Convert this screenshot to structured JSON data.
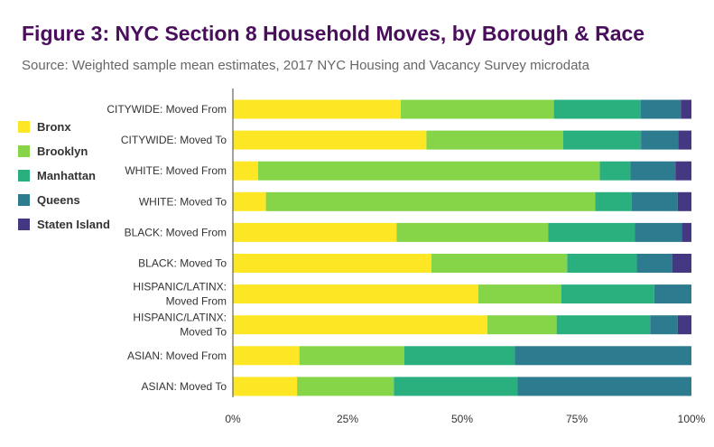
{
  "title": "Figure 3: NYC Section 8 Household Moves, by Borough & Race",
  "subtitle": "Source: Weighted sample mean estimates, 2017 NYC Housing and Vacancy Survey microdata",
  "legend": [
    {
      "label": "Bronx",
      "color": "#fde725"
    },
    {
      "label": "Brooklyn",
      "color": "#86d549"
    },
    {
      "label": "Manhattan",
      "color": "#2ab07f"
    },
    {
      "label": "Queens",
      "color": "#2c7b8e"
    },
    {
      "label": "Staten Island",
      "color": "#453882"
    }
  ],
  "chart_data": {
    "type": "bar",
    "orientation": "horizontal",
    "stacked": "percent",
    "categories": [
      [
        "CITYWIDE: Moved From"
      ],
      [
        "CITYWIDE: Moved To"
      ],
      [
        "WHITE: Moved From"
      ],
      [
        "WHITE: Moved To"
      ],
      [
        "BLACK: Moved From"
      ],
      [
        "BLACK: Moved To"
      ],
      [
        "HISPANIC/LATINX:",
        "Moved From"
      ],
      [
        "HISPANIC/LATINX:",
        "Moved To"
      ],
      [
        "ASIAN: Moved From"
      ],
      [
        "ASIAN: Moved To"
      ]
    ],
    "series": [
      {
        "name": "Bronx",
        "color": "#fde725",
        "values": [
          36.6,
          42.2,
          5.5,
          7.2,
          35.7,
          43.3,
          53.5,
          55.5,
          14.5,
          14.0
        ]
      },
      {
        "name": "Brooklyn",
        "color": "#86d549",
        "values": [
          33.4,
          29.8,
          74.5,
          71.8,
          33.1,
          29.6,
          18.1,
          15.1,
          22.9,
          21.1
        ]
      },
      {
        "name": "Manhattan",
        "color": "#2ab07f",
        "values": [
          18.9,
          17.0,
          6.7,
          8.0,
          18.9,
          15.2,
          20.3,
          20.4,
          24.1,
          27.0
        ]
      },
      {
        "name": "Queens",
        "color": "#2c7b8e",
        "values": [
          8.8,
          8.1,
          9.8,
          10.0,
          10.2,
          7.7,
          8.1,
          6.0,
          38.5,
          37.9
        ]
      },
      {
        "name": "Staten Island",
        "color": "#453882",
        "values": [
          2.3,
          2.9,
          3.5,
          3.0,
          2.1,
          4.2,
          0.0,
          3.0,
          0.0,
          0.0
        ]
      }
    ],
    "xlim": [
      0,
      100
    ],
    "xticks": [
      "0%",
      "25%",
      "50%",
      "75%",
      "100%"
    ],
    "legend_position": "left",
    "grid": false
  }
}
